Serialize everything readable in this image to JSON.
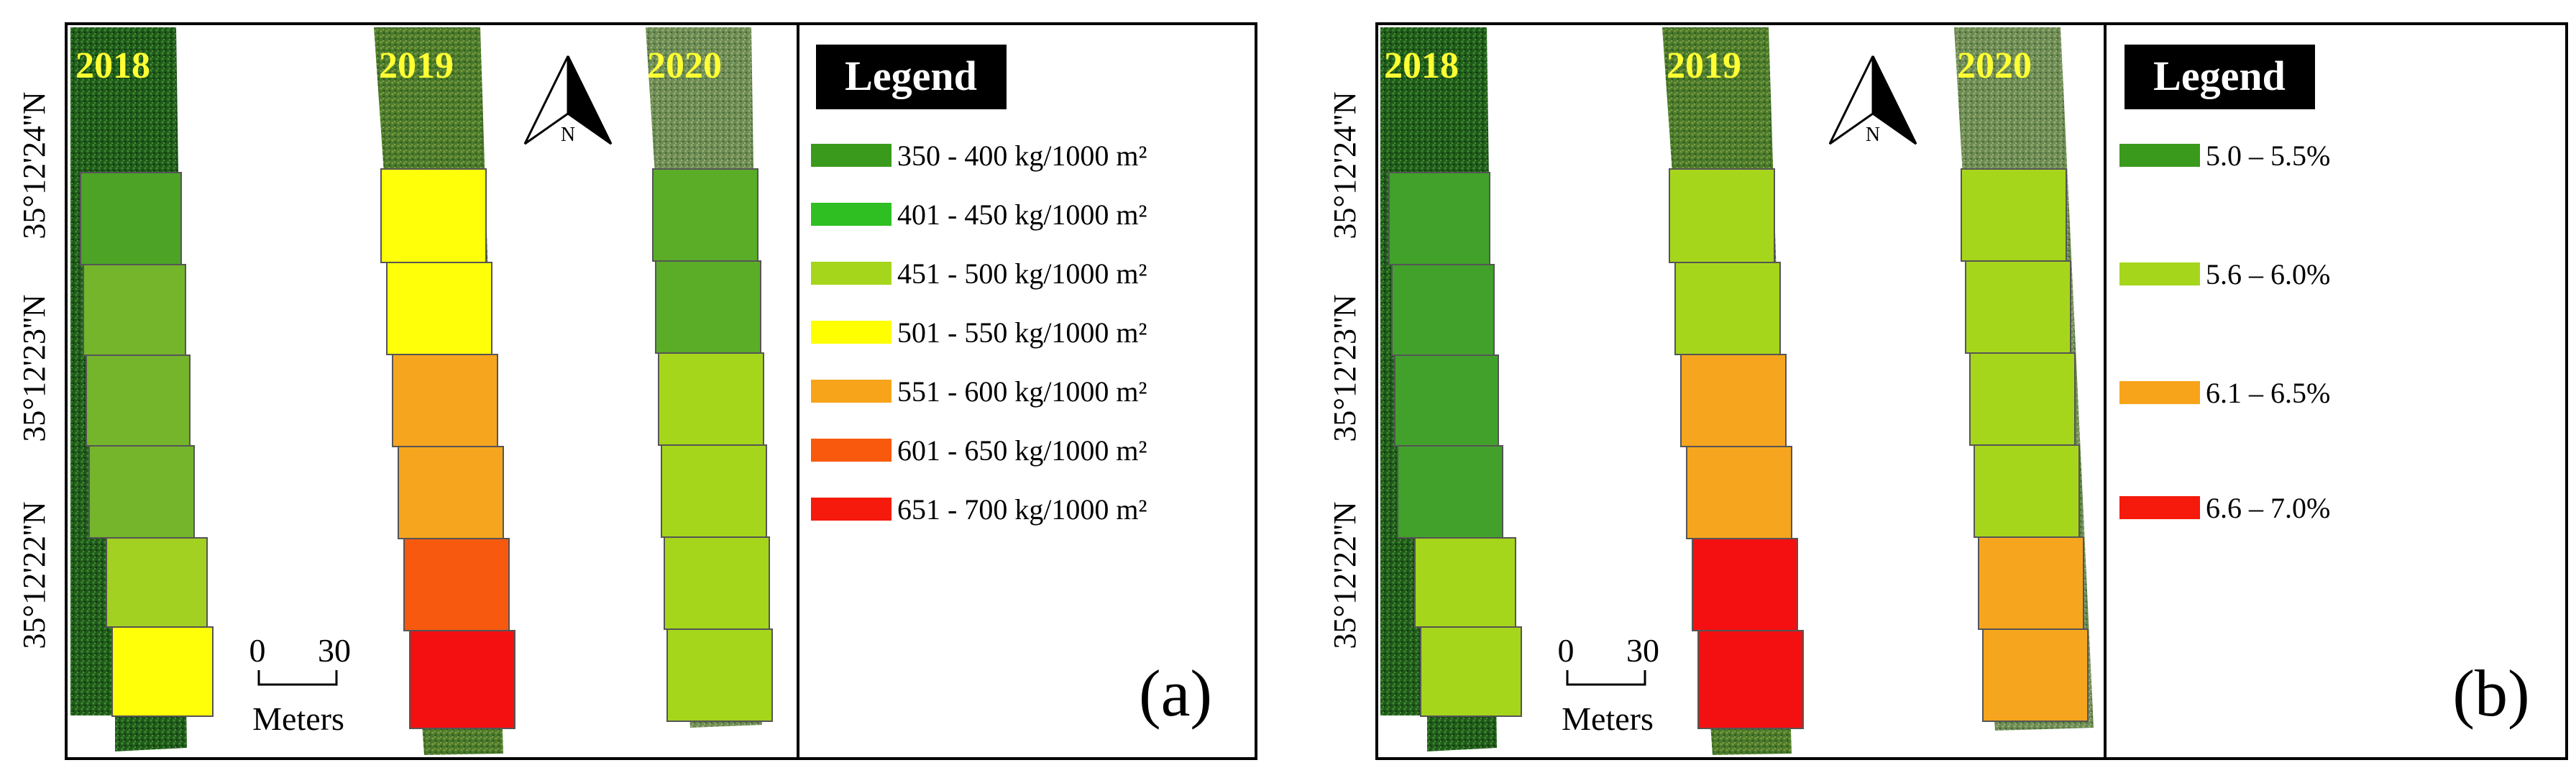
{
  "panels": [
    {
      "id": "a",
      "label": "(a)",
      "latitude_labels": [
        "35°12'24''N",
        "35°12'23''N",
        "35°12'22''N"
      ],
      "years": [
        "2018",
        "2019",
        "2020"
      ],
      "scale": {
        "zero": "0",
        "max": "30",
        "unit": "Meters"
      },
      "north_label": "N",
      "legend_title": "Legend",
      "legend": [
        {
          "label": "350 - 400 kg/1000 m²",
          "color": "#3a9a1c"
        },
        {
          "label": "401 - 450 kg/1000 m²",
          "color": "#2fbf23"
        },
        {
          "label": "451 - 500 kg/1000 m²",
          "color": "#a6d61c"
        },
        {
          "label": "501 - 550 kg/1000 m²",
          "color": "#ffff00"
        },
        {
          "label": "551 - 600 kg/1000 m²",
          "color": "#f8a41a"
        },
        {
          "label": "601 - 650 kg/1000 m²",
          "color": "#f8590c"
        },
        {
          "label": "651 - 700 kg/1000 m²",
          "color": "#f51a0c"
        }
      ],
      "strips": [
        {
          "year": "2018",
          "blocks": [
            {
              "class": "350 - 400",
              "color": "#4ca326"
            },
            {
              "class": "451 - 500",
              "color": "#74b52c"
            },
            {
              "class": "451 - 500",
              "color": "#74b52c"
            },
            {
              "class": "451 - 500",
              "color": "#74b52c"
            },
            {
              "class": "451 - 500",
              "color": "#a2d121"
            },
            {
              "class": "501 - 550",
              "color": "#ffff0a"
            }
          ]
        },
        {
          "year": "2019",
          "blocks": [
            {
              "class": "501 - 550",
              "color": "#ffff0a"
            },
            {
              "class": "501 - 550",
              "color": "#ffff0a"
            },
            {
              "class": "551 - 600",
              "color": "#f6a51e"
            },
            {
              "class": "551 - 600",
              "color": "#f6a51e"
            },
            {
              "class": "601 - 650",
              "color": "#f7590f"
            },
            {
              "class": "651 - 700",
              "color": "#f41010"
            }
          ]
        },
        {
          "year": "2020",
          "blocks": [
            {
              "class": "350 - 400",
              "color": "#5bad28"
            },
            {
              "class": "350 - 400",
              "color": "#5bad28"
            },
            {
              "class": "451 - 500",
              "color": "#a6d61c"
            },
            {
              "class": "451 - 500",
              "color": "#a6d61c"
            },
            {
              "class": "451 - 500",
              "color": "#a6d61c"
            },
            {
              "class": "451 - 500",
              "color": "#a6d61c"
            }
          ]
        }
      ]
    },
    {
      "id": "b",
      "label": "(b)",
      "latitude_labels": [
        "35°12'24''N",
        "35°12'23''N",
        "35°12'22''N"
      ],
      "years": [
        "2018",
        "2019",
        "2020"
      ],
      "scale": {
        "zero": "0",
        "max": "30",
        "unit": "Meters"
      },
      "north_label": "N",
      "legend_title": "Legend",
      "legend": [
        {
          "label": "5.0 – 5.5%",
          "color": "#3a9a1c"
        },
        {
          "label": "5.6 – 6.0%",
          "color": "#a6d61c"
        },
        {
          "label": "6.1 – 6.5%",
          "color": "#f8a41a"
        },
        {
          "label": "6.6 – 7.0%",
          "color": "#f51a0c"
        }
      ],
      "strips": [
        {
          "year": "2018",
          "blocks": [
            {
              "class": "5.0 – 5.5%",
              "color": "#41a12a"
            },
            {
              "class": "5.0 – 5.5%",
              "color": "#41a12a"
            },
            {
              "class": "5.0 – 5.5%",
              "color": "#41a12a"
            },
            {
              "class": "5.0 – 5.5%",
              "color": "#41a12a"
            },
            {
              "class": "5.6 – 6.0%",
              "color": "#a6d61c"
            },
            {
              "class": "5.6 – 6.0%",
              "color": "#a6d61c"
            }
          ]
        },
        {
          "year": "2019",
          "blocks": [
            {
              "class": "5.6 – 6.0%",
              "color": "#a6d61c"
            },
            {
              "class": "5.6 – 6.0%",
              "color": "#a6d61c"
            },
            {
              "class": "6.1 – 6.5%",
              "color": "#f6a51e"
            },
            {
              "class": "6.1 – 6.5%",
              "color": "#f6a51e"
            },
            {
              "class": "6.6 – 7.0%",
              "color": "#f41010"
            },
            {
              "class": "6.6 – 7.0%",
              "color": "#f41010"
            }
          ]
        },
        {
          "year": "2020",
          "blocks": [
            {
              "class": "5.6 – 6.0%",
              "color": "#a6d61c"
            },
            {
              "class": "5.6 – 6.0%",
              "color": "#a6d61c"
            },
            {
              "class": "5.6 – 6.0%",
              "color": "#a6d61c"
            },
            {
              "class": "5.6 – 6.0%",
              "color": "#a6d61c"
            },
            {
              "class": "6.1 – 6.5%",
              "color": "#f6a51e"
            },
            {
              "class": "6.1 – 6.5%",
              "color": "#f6a51e"
            }
          ]
        }
      ]
    }
  ],
  "imagery_colors": {
    "dark": "#1f5a1a",
    "mid": "#3c7a2a",
    "light": "#6b8a4a"
  },
  "year_label_color": "#ffff33"
}
